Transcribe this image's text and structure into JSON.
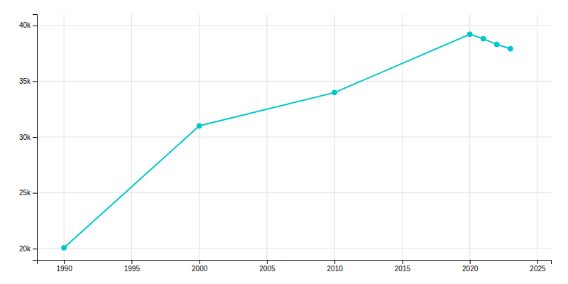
{
  "chart_data": {
    "type": "line",
    "x": [
      1990,
      2000,
      2010,
      2020,
      2021,
      2022,
      2023
    ],
    "values": [
      20079,
      31000,
      33982,
      39202,
      38802,
      38290,
      37902
    ],
    "color": "#00c8c8",
    "marker": "circle",
    "xlim": [
      1988,
      2026
    ],
    "ylim": [
      19000,
      41000
    ],
    "xticks": [
      1990,
      1995,
      2000,
      2005,
      2010,
      2015,
      2020,
      2025
    ],
    "yticks": [
      {
        "value": 20000,
        "label": "20k"
      },
      {
        "value": 25000,
        "label": "25k"
      },
      {
        "value": 30000,
        "label": "30k"
      },
      {
        "value": 35000,
        "label": "35k"
      },
      {
        "value": 40000,
        "label": "40k"
      }
    ],
    "grid": true
  }
}
